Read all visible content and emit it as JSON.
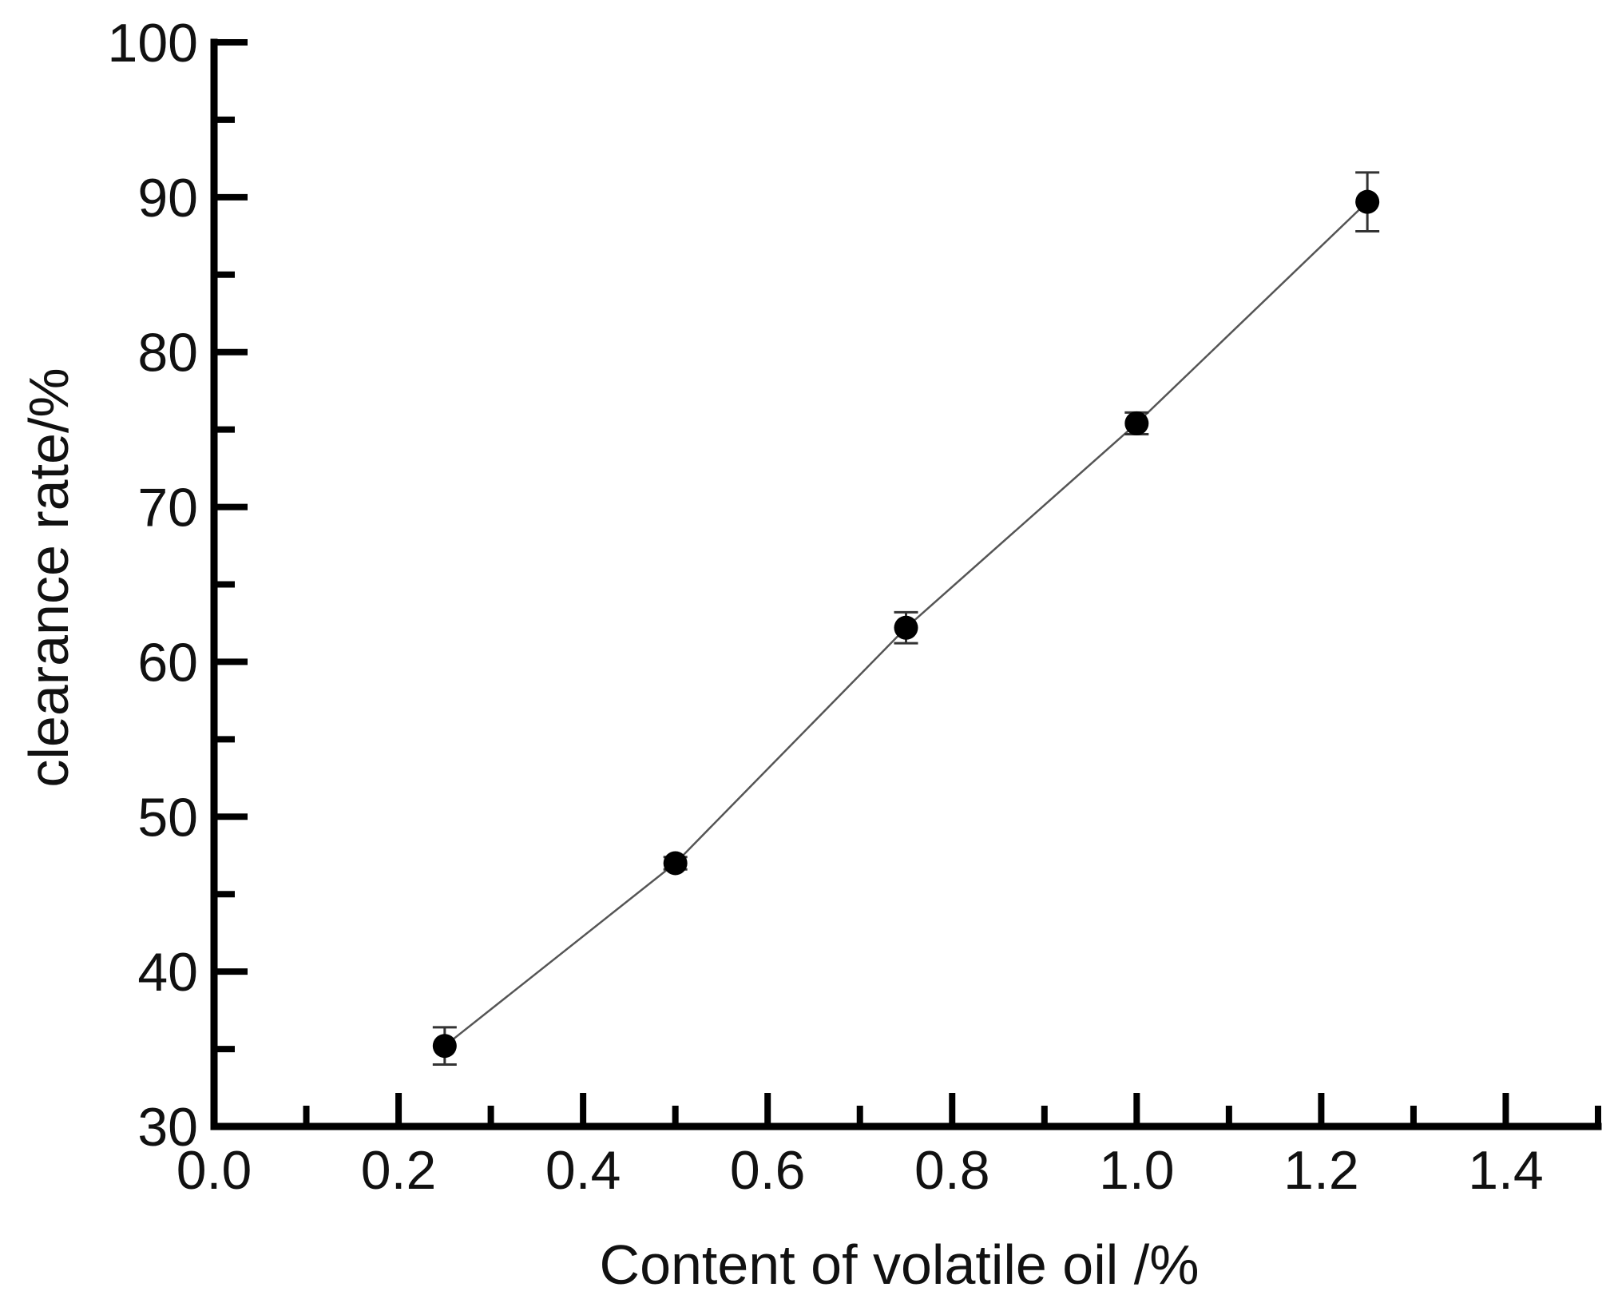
{
  "chart_data": {
    "type": "line",
    "title": "",
    "xlabel": "Content of volatile oil /%",
    "ylabel": "clearance rate/%",
    "xlim": [
      0.0,
      1.5
    ],
    "ylim": [
      30,
      100
    ],
    "x_ticks": [
      "0.0",
      "0.2",
      "0.4",
      "0.6",
      "0.8",
      "1.0",
      "1.2",
      "1.4"
    ],
    "y_ticks": [
      "30",
      "40",
      "50",
      "60",
      "70",
      "80",
      "90",
      "100"
    ],
    "x_major_step": 0.2,
    "x_minor_step": 0.1,
    "y_major_step": 10,
    "y_minor_step": 5,
    "grid": false,
    "legend": "none",
    "colors": {
      "line": "#555555",
      "marker": "#000000",
      "axis": "#000000"
    },
    "series": [
      {
        "x": [
          0.25,
          0.5,
          0.75,
          1.0,
          1.25
        ],
        "y": [
          35.2,
          47.0,
          62.2,
          75.4,
          89.7
        ],
        "error": [
          1.2,
          0.4,
          1.0,
          0.7,
          1.9
        ]
      }
    ]
  }
}
